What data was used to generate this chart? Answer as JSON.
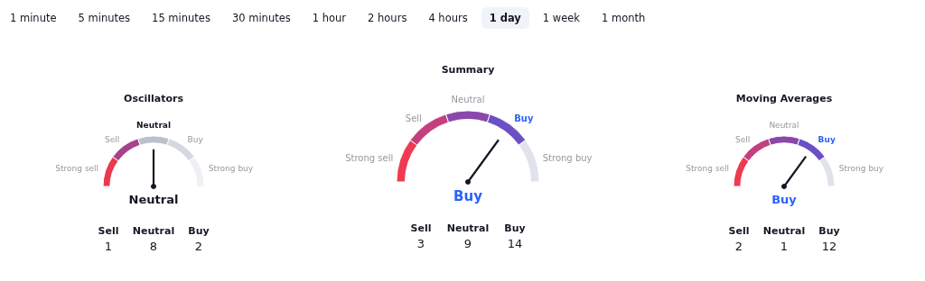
{
  "chart_data": [
    {
      "type": "other",
      "categories": [
        "1 minute",
        "5 minutes",
        "15 minutes",
        "30 minutes",
        "1 hour",
        "2 hours",
        "4 hours",
        "1 day",
        "1 week",
        "1 month"
      ],
      "colors": [
        "#ffffff",
        "#ffffff",
        "#ffffff",
        "#ffffff",
        "#ffffff",
        "#ffffff",
        "#ffffff",
        "#f0f3fa",
        "#ffffff",
        "#ffffff"
      ]
    },
    {
      "type": "donut",
      "title": "Oscillators",
      "categories": [
        "Strong sell",
        "Sell",
        "Neutral",
        "Buy",
        "Strong buy"
      ],
      "values": [
        20,
        20,
        20,
        20,
        20
      ],
      "colors": [
        "#e8394f",
        "#a8428f",
        "#bcc0ca",
        "#d5d8e0",
        "#eef0f4"
      ],
      "needle": "Neutral",
      "annotations": [
        "Neutral"
      ]
    },
    {
      "type": "other",
      "categories": [
        "Sell",
        "Neutral",
        "Buy"
      ],
      "values": [
        1,
        8,
        2
      ],
      "data_labels": true
    },
    {
      "type": "donut",
      "title": "Summary",
      "categories": [
        "Strong sell",
        "Sell",
        "Neutral",
        "Buy",
        "Strong buy"
      ],
      "values": [
        20,
        20,
        20,
        20,
        20
      ],
      "colors": [
        "#ee3a52",
        "#c3407f",
        "#8a48ab",
        "#6c4fc4",
        "#e0e3eb"
      ],
      "needle": "Buy",
      "annotations": [
        "Buy"
      ]
    },
    {
      "type": "other",
      "categories": [
        "Sell",
        "Neutral",
        "Buy"
      ],
      "values": [
        3,
        9,
        14
      ],
      "data_labels": true
    },
    {
      "type": "donut",
      "title": "Moving Averages",
      "categories": [
        "Strong sell",
        "Sell",
        "Neutral",
        "Buy",
        "Strong buy"
      ],
      "values": [
        20,
        20,
        20,
        20,
        20
      ],
      "colors": [
        "#ee3a52",
        "#c3407f",
        "#8a48ab",
        "#6c4fc4",
        "#e0e3eb"
      ],
      "needle": "Buy",
      "annotations": [
        "Buy"
      ]
    },
    {
      "type": "other",
      "categories": [
        "Sell",
        "Neutral",
        "Buy"
      ],
      "values": [
        2,
        1,
        12
      ],
      "data_labels": true
    }
  ]
}
